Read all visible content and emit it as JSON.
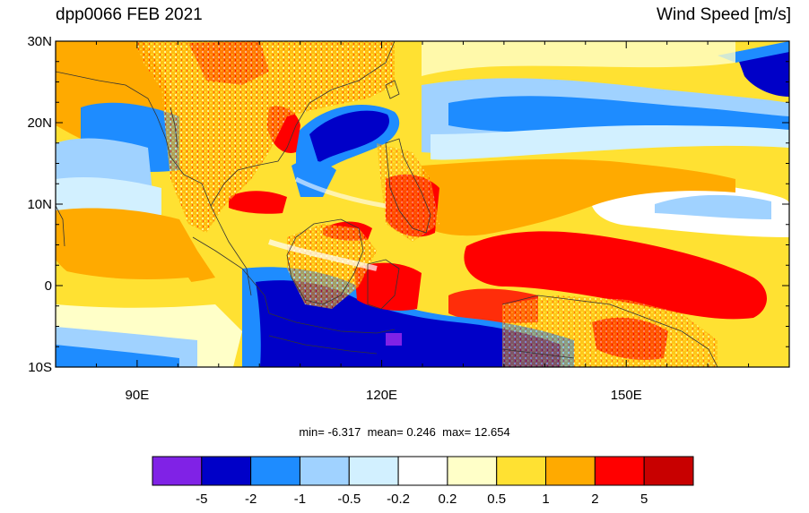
{
  "title": {
    "left": "dpp0066 FEB 2021",
    "right": "Wind Speed [m/s]"
  },
  "map": {
    "lon_range": [
      80,
      170
    ],
    "lat_range": [
      -10,
      30
    ],
    "lat_ticks": [
      {
        "value": 30,
        "label": "30N"
      },
      {
        "value": 20,
        "label": "20N"
      },
      {
        "value": 10,
        "label": "10N"
      },
      {
        "value": 0,
        "label": "0"
      },
      {
        "value": -10,
        "label": "10S"
      }
    ],
    "lon_ticks": [
      {
        "value": 90,
        "label": "90E"
      },
      {
        "value": 120,
        "label": "120E"
      },
      {
        "value": 150,
        "label": "150E"
      }
    ]
  },
  "stats": {
    "min_label": "min=",
    "min": "-6.317",
    "mean_label": "mean=",
    "mean": "0.246",
    "max_label": "max=",
    "max": "12.654"
  },
  "colorbar": {
    "colors": [
      "#8022e6",
      "#0000c8",
      "#1e8cff",
      "#a0d2ff",
      "#d2f0ff",
      "#ffffff",
      "#ffffc8",
      "#ffe132",
      "#ffaa00",
      "#ff0000",
      "#c80000"
    ],
    "labels": [
      "-5",
      "-2",
      "-1",
      "-0.5",
      "-0.2",
      "0.2",
      "0.5",
      "1",
      "2",
      "5"
    ]
  }
}
